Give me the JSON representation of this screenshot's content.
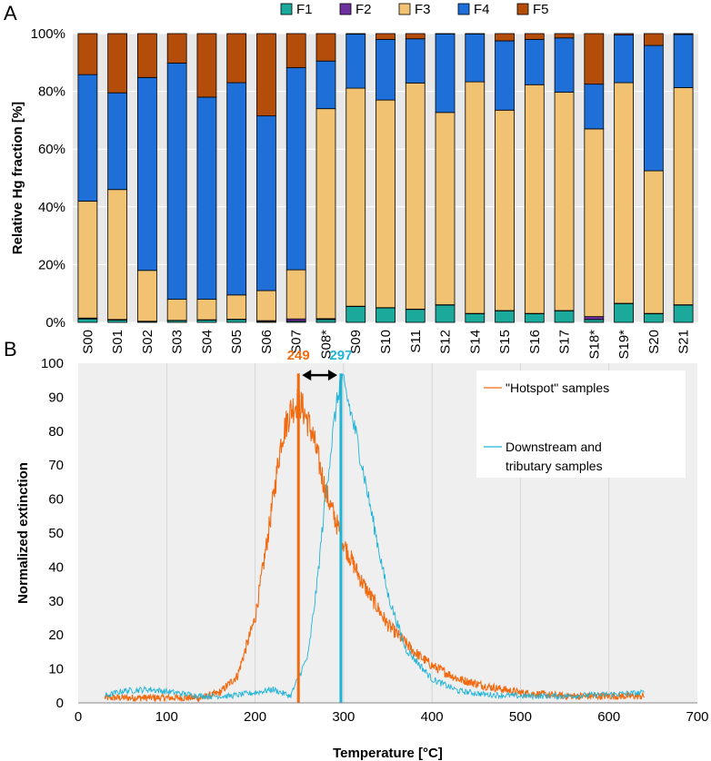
{
  "chart_data": [
    {
      "panel_label": "A",
      "type": "bar",
      "stacked": true,
      "ylabel": "Relative Hg fraction [%]",
      "xlabel": "",
      "ylim": [
        0,
        100
      ],
      "yticks": [
        "0%",
        "20%",
        "40%",
        "60%",
        "80%",
        "100%"
      ],
      "legend_position": "top",
      "categories": [
        "S00",
        "S01",
        "S02",
        "S03",
        "S04",
        "S05",
        "S06",
        "S07",
        "S08*",
        "S09",
        "S10",
        "S11",
        "S12",
        "S14",
        "S15",
        "S16",
        "S17",
        "S18*",
        "S19*",
        "S20",
        "S21"
      ],
      "series": [
        {
          "name": "F1",
          "color": "#1aa99b",
          "values": [
            1.2,
            0.8,
            0.3,
            0.6,
            0.8,
            1.0,
            0.3,
            0.4,
            1.0,
            5.5,
            5.0,
            4.5,
            6.0,
            3.0,
            4.0,
            3.0,
            4.0,
            1.0,
            6.5,
            3.0,
            6.0
          ]
        },
        {
          "name": "F2",
          "color": "#7030a0",
          "values": [
            0.3,
            0.2,
            0.1,
            0.1,
            0.1,
            0.1,
            0.3,
            0.8,
            0.3,
            0.1,
            0.1,
            0.1,
            0.1,
            0.1,
            0.1,
            0.1,
            0.1,
            1.0,
            0.1,
            0.1,
            0.1
          ]
        },
        {
          "name": "F3",
          "color": "#f0c272",
          "values": [
            40.5,
            45.0,
            17.6,
            7.3,
            7.1,
            8.4,
            10.4,
            17.0,
            72.7,
            75.5,
            71.9,
            78.3,
            66.6,
            80.2,
            69.4,
            79.2,
            75.6,
            65.0,
            76.4,
            49.4,
            75.2
          ]
        },
        {
          "name": "F4",
          "color": "#1f6fd8",
          "values": [
            43.8,
            33.5,
            66.8,
            81.8,
            70.0,
            73.5,
            60.5,
            70.0,
            16.5,
            18.7,
            21.0,
            15.3,
            27.2,
            16.6,
            24.0,
            15.7,
            18.8,
            15.5,
            16.5,
            43.4,
            18.4
          ]
        },
        {
          "name": "F5",
          "color": "#b44d0a",
          "values": [
            14.2,
            20.5,
            15.2,
            10.2,
            22.0,
            17.0,
            28.5,
            11.8,
            9.5,
            0.2,
            2.0,
            1.8,
            0.1,
            0.1,
            2.5,
            2.0,
            1.5,
            17.5,
            0.5,
            4.1,
            0.3
          ]
        }
      ]
    },
    {
      "panel_label": "B",
      "type": "line",
      "xlabel": "Temperature [°C]",
      "ylabel": "Normalized extinction",
      "xlim": [
        0,
        700
      ],
      "ylim": [
        0,
        100
      ],
      "xticks": [
        0,
        100,
        200,
        300,
        400,
        500,
        600,
        700
      ],
      "yticks": [
        0,
        10,
        20,
        30,
        40,
        50,
        60,
        70,
        80,
        90,
        100
      ],
      "grid": "vertical",
      "legend_position": "top-right",
      "series": [
        {
          "name": "\"Hotspot\" samples",
          "color": "#f26a10",
          "x": [
            30,
            60,
            100,
            140,
            160,
            180,
            200,
            215,
            230,
            240,
            249,
            255,
            265,
            280,
            300,
            320,
            350,
            380,
            400,
            430,
            460,
            500,
            550,
            600,
            640
          ],
          "y": [
            1.5,
            1.5,
            1.5,
            1.5,
            3,
            8,
            25,
            50,
            78,
            86,
            89,
            86,
            79,
            62,
            47,
            36,
            23,
            15,
            11,
            7,
            5,
            3,
            2,
            2,
            2
          ]
        },
        {
          "name": "Downstream and tributary samples",
          "color": "#1fb3d6",
          "x": [
            30,
            50,
            80,
            110,
            140,
            170,
            200,
            220,
            240,
            260,
            270,
            280,
            290,
            297,
            305,
            315,
            330,
            350,
            370,
            400,
            430,
            460,
            500,
            550,
            600,
            640
          ],
          "y": [
            2,
            3.5,
            4,
            3,
            2,
            2,
            3,
            4,
            2,
            14,
            35,
            62,
            84,
            96,
            89,
            78,
            58,
            32,
            16,
            7,
            3.5,
            2.5,
            2,
            2,
            2.5,
            3
          ]
        }
      ],
      "peaks": [
        {
          "label": "249",
          "x": 249,
          "color": "#f26a10"
        },
        {
          "label": "297",
          "x": 297,
          "color": "#1fb3d6"
        }
      ]
    }
  ]
}
